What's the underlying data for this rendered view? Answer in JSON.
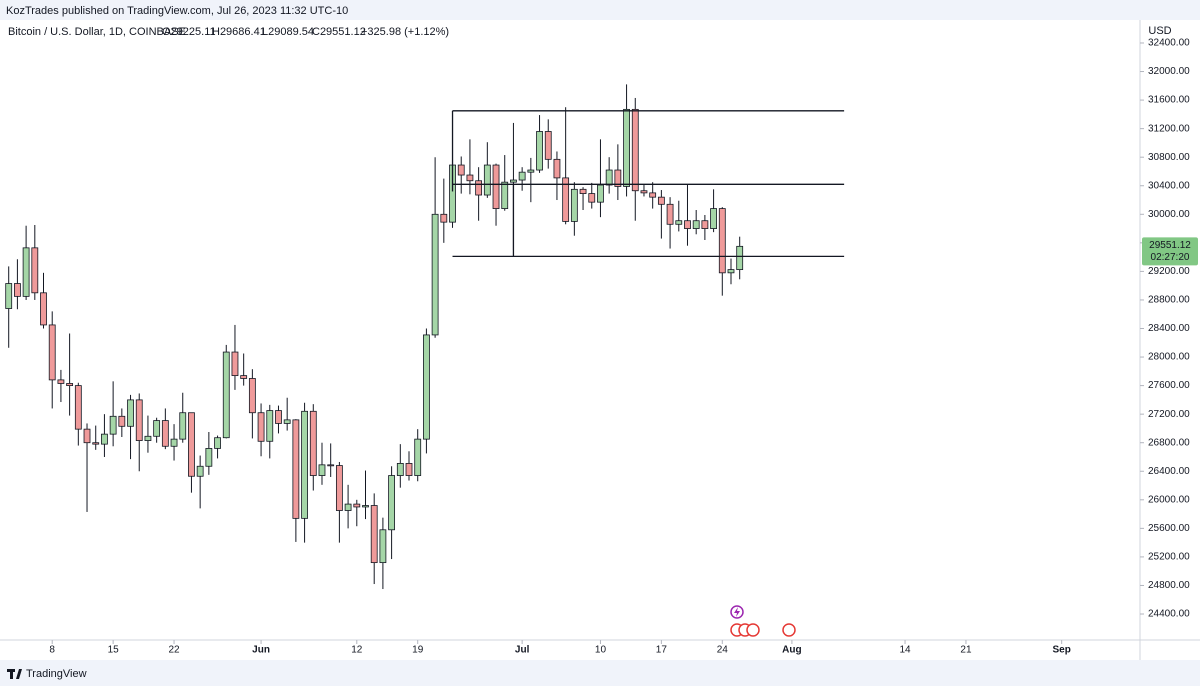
{
  "header": {
    "text": "KozTrades published on TradingView.com, Jul 26, 2023 11:32 UTC-10"
  },
  "footer": {
    "brand": "TradingView"
  },
  "chart_data": {
    "type": "candlestick",
    "title": "Bitcoin / U.S. Dollar, 1D, COINBASE",
    "legend": {
      "open": "O29225.11",
      "high": "H29686.41",
      "low": "L29089.54",
      "close": "C29551.12",
      "change": "+325.98 (+1.12%)"
    },
    "currency": "USD",
    "countdown": "02:27:20",
    "colors": {
      "up": "#a5d6a7",
      "down": "#ef9a9a",
      "outline": "#131722",
      "price_tag": "#81c784"
    },
    "x": [
      "2023-05-03",
      "2023-05-04",
      "2023-05-05",
      "2023-05-06",
      "2023-05-07",
      "2023-05-08",
      "2023-05-09",
      "2023-05-10",
      "2023-05-11",
      "2023-05-12",
      "2023-05-13",
      "2023-05-14",
      "2023-05-15",
      "2023-05-16",
      "2023-05-17",
      "2023-05-18",
      "2023-05-19",
      "2023-05-20",
      "2023-05-21",
      "2023-05-22",
      "2023-05-23",
      "2023-05-24",
      "2023-05-25",
      "2023-05-26",
      "2023-05-27",
      "2023-05-28",
      "2023-05-29",
      "2023-05-30",
      "2023-05-31",
      "2023-06-01",
      "2023-06-02",
      "2023-06-03",
      "2023-06-04",
      "2023-06-05",
      "2023-06-06",
      "2023-06-07",
      "2023-06-08",
      "2023-06-09",
      "2023-06-10",
      "2023-06-11",
      "2023-06-12",
      "2023-06-13",
      "2023-06-14",
      "2023-06-15",
      "2023-06-16",
      "2023-06-17",
      "2023-06-18",
      "2023-06-19",
      "2023-06-20",
      "2023-06-21",
      "2023-06-22",
      "2023-06-23",
      "2023-06-24",
      "2023-06-25",
      "2023-06-26",
      "2023-06-27",
      "2023-06-28",
      "2023-06-29",
      "2023-06-30",
      "2023-07-01",
      "2023-07-02",
      "2023-07-03",
      "2023-07-04",
      "2023-07-05",
      "2023-07-06",
      "2023-07-07",
      "2023-07-08",
      "2023-07-09",
      "2023-07-10",
      "2023-07-11",
      "2023-07-12",
      "2023-07-13",
      "2023-07-14",
      "2023-07-15",
      "2023-07-16",
      "2023-07-17",
      "2023-07-18",
      "2023-07-19",
      "2023-07-20",
      "2023-07-21",
      "2023-07-22",
      "2023-07-23",
      "2023-07-24",
      "2023-07-25",
      "2023-07-26"
    ],
    "open": [
      28680,
      29030,
      28850,
      29530,
      28900,
      28450,
      27680,
      27630,
      27600,
      26990,
      26800,
      26780,
      26920,
      27170,
      27030,
      27400,
      26830,
      26890,
      27110,
      26750,
      26850,
      27220,
      26330,
      26470,
      26720,
      26870,
      28070,
      27740,
      27700,
      27220,
      26820,
      27250,
      27070,
      27120,
      25740,
      27240,
      26340,
      26490,
      26480,
      25850,
      25940,
      25900,
      25920,
      25120,
      25580,
      26340,
      26510,
      26340,
      26850,
      28310,
      30000,
      29890,
      30690,
      30550,
      30470,
      30270,
      30690,
      30080,
      30450,
      30480,
      30590,
      30620,
      31160,
      30770,
      30510,
      29900,
      30350,
      30290,
      30170,
      30410,
      30620,
      30390,
      31470,
      30330,
      30300,
      30240,
      30140,
      29860,
      29910,
      29800,
      29910,
      29800,
      30080,
      29180,
      29225.11
    ],
    "high": [
      29270,
      29370,
      29840,
      29850,
      29180,
      28640,
      27820,
      28330,
      27640,
      27070,
      27040,
      27200,
      27660,
      27280,
      27470,
      27490,
      27180,
      27150,
      27280,
      27060,
      27500,
      27220,
      26620,
      26950,
      26900,
      28170,
      28450,
      28050,
      27830,
      27350,
      27330,
      27320,
      27430,
      27130,
      27360,
      27340,
      26800,
      26790,
      26530,
      26210,
      26000,
      26410,
      26090,
      25750,
      26470,
      26780,
      26680,
      26990,
      28400,
      30800,
      30500,
      31400,
      30810,
      31050,
      30660,
      31010,
      30710,
      30830,
      31280,
      30660,
      30790,
      31390,
      31330,
      30880,
      31500,
      30450,
      30380,
      30440,
      31050,
      30800,
      30980,
      31820,
      31630,
      30410,
      30450,
      30340,
      30240,
      30190,
      30420,
      30060,
      29990,
      30350,
      30100,
      29380,
      29686.41
    ],
    "low": [
      28130,
      28670,
      28800,
      28800,
      28400,
      27280,
      27370,
      27180,
      26760,
      25830,
      26700,
      26600,
      26750,
      26880,
      26570,
      26400,
      26660,
      26800,
      26710,
      26550,
      26800,
      26100,
      25880,
      26350,
      26580,
      26860,
      27540,
      27600,
      26860,
      26610,
      26580,
      26930,
      26970,
      25410,
      25400,
      26130,
      26210,
      26320,
      25400,
      25600,
      25630,
      25730,
      24820,
      24750,
      25170,
      26170,
      26270,
      26260,
      26650,
      28270,
      29600,
      29810,
      30290,
      30280,
      29910,
      30230,
      29840,
      30050,
      29500,
      30330,
      30170,
      30580,
      30640,
      30200,
      29860,
      29700,
      30060,
      30080,
      29960,
      30290,
      30200,
      30250,
      29910,
      30250,
      30080,
      29660,
      29520,
      29760,
      29560,
      29720,
      29640,
      29750,
      28860,
      29020,
      29089.54
    ],
    "close": [
      29030,
      28850,
      29530,
      28900,
      28450,
      27680,
      27630,
      27600,
      26990,
      26800,
      26780,
      26920,
      27170,
      27030,
      27400,
      26830,
      26890,
      27110,
      26750,
      26850,
      27220,
      26330,
      26470,
      26720,
      26870,
      28070,
      27740,
      27700,
      27220,
      26820,
      27250,
      27070,
      27120,
      25740,
      27240,
      26340,
      26490,
      26480,
      25850,
      25940,
      25900,
      25920,
      25120,
      25580,
      26340,
      26510,
      26340,
      26850,
      28310,
      30000,
      29890,
      30690,
      30550,
      30470,
      30270,
      30690,
      30080,
      30450,
      30480,
      30590,
      30620,
      31160,
      30770,
      30510,
      29900,
      30350,
      30290,
      30170,
      30410,
      30620,
      30390,
      31470,
      30330,
      30300,
      30240,
      30140,
      29860,
      29910,
      29800,
      29910,
      29800,
      30080,
      29180,
      29225.11,
      29551.12
    ],
    "xlim": [
      "2023-05-02",
      "2023-09-10"
    ],
    "xticks": [
      {
        "value": "2023-05-08",
        "label": "8"
      },
      {
        "value": "2023-05-15",
        "label": "15"
      },
      {
        "value": "2023-05-22",
        "label": "22"
      },
      {
        "value": "2023-06-01",
        "label": "Jun"
      },
      {
        "value": "2023-06-12",
        "label": "12"
      },
      {
        "value": "2023-06-19",
        "label": "19"
      },
      {
        "value": "2023-07-01",
        "label": "Jul"
      },
      {
        "value": "2023-07-10",
        "label": "10"
      },
      {
        "value": "2023-07-17",
        "label": "17"
      },
      {
        "value": "2023-07-24",
        "label": "24"
      },
      {
        "value": "2023-08-01",
        "label": "Aug"
      },
      {
        "value": "2023-08-14",
        "label": "14"
      },
      {
        "value": "2023-08-21",
        "label": "21"
      },
      {
        "value": "2023-09-01",
        "label": "Sep"
      }
    ],
    "ylim": [
      24036,
      32722
    ],
    "yticks": [
      {
        "value": 24400,
        "label": "24400.00"
      },
      {
        "value": 24800,
        "label": "24800.00"
      },
      {
        "value": 25200,
        "label": "25200.00"
      },
      {
        "value": 25600,
        "label": "25600.00"
      },
      {
        "value": 26000,
        "label": "26000.00"
      },
      {
        "value": 26400,
        "label": "26400.00"
      },
      {
        "value": 26800,
        "label": "26800.00"
      },
      {
        "value": 27200,
        "label": "27200.00"
      },
      {
        "value": 27600,
        "label": "27600.00"
      },
      {
        "value": 28000,
        "label": "28000.00"
      },
      {
        "value": 28400,
        "label": "28400.00"
      },
      {
        "value": 28800,
        "label": "28800.00"
      },
      {
        "value": 29200,
        "label": "29200.00"
      },
      {
        "value": 29600,
        "label": "29600.00"
      },
      {
        "value": 30000,
        "label": "30000.00"
      },
      {
        "value": 30400,
        "label": "30400.00"
      },
      {
        "value": 30800,
        "label": "30800.00"
      },
      {
        "value": 31200,
        "label": "31200.00"
      },
      {
        "value": 31600,
        "label": "31600.00"
      },
      {
        "value": 32000,
        "label": "32000.00"
      },
      {
        "value": 32400,
        "label": "32400.00"
      }
    ],
    "drawings": [
      {
        "x": [
          "2023-06-23",
          "2023-08-07"
        ],
        "y": [
          31450,
          31450
        ]
      },
      {
        "x": [
          "2023-06-23",
          "2023-08-07"
        ],
        "y": [
          30420,
          30420
        ]
      },
      {
        "x": [
          "2023-06-23",
          "2023-08-07"
        ],
        "y": [
          29410,
          29410
        ]
      },
      {
        "x": [
          "2023-06-23",
          "2023-06-23"
        ],
        "y": [
          31450,
          30320
        ]
      },
      {
        "x": [
          "2023-06-30",
          "2023-06-30"
        ],
        "y": [
          30420,
          29410
        ]
      }
    ]
  }
}
